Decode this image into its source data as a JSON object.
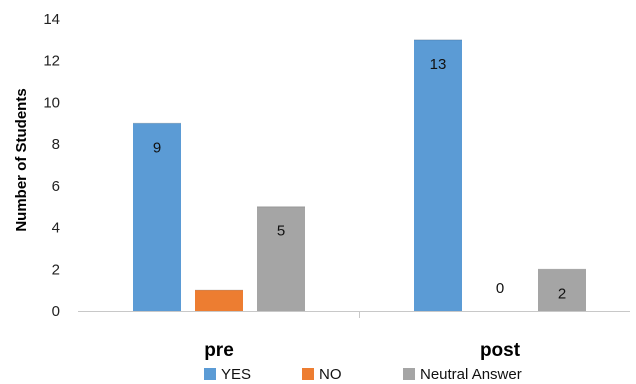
{
  "chart_data": {
    "type": "bar",
    "categories": [
      "pre",
      "post"
    ],
    "series": [
      {
        "name": "YES",
        "values": [
          9,
          13
        ],
        "color": "#5B9BD5"
      },
      {
        "name": "NO",
        "values": [
          1,
          0
        ],
        "color": "#ED7D31"
      },
      {
        "name": "Neutral Answer",
        "values": [
          5,
          2
        ],
        "color": "#A5A5A5"
      }
    ],
    "data_labels": [
      [
        "9",
        "13"
      ],
      [
        "",
        "0"
      ],
      [
        "5",
        "2"
      ]
    ],
    "ylabel": "Number of Students",
    "xlabel": "",
    "ylim": [
      0,
      14
    ],
    "yticks": [
      0,
      2,
      4,
      6,
      8,
      10,
      12,
      14
    ],
    "grid": false,
    "legend_position": "bottom"
  }
}
